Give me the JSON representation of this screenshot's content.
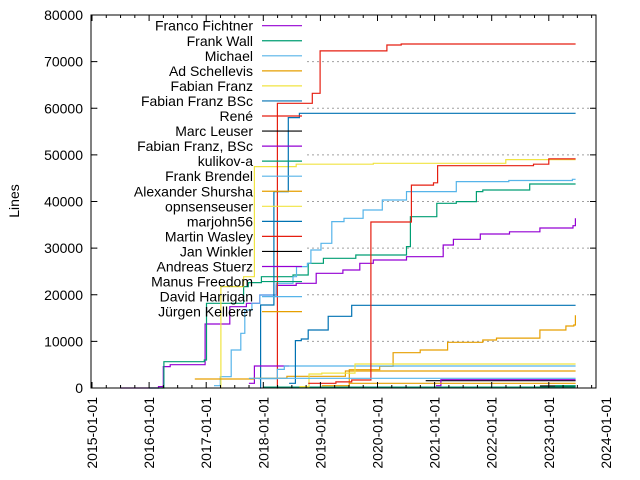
{
  "chart_data": {
    "type": "line",
    "style": "steps",
    "title": "",
    "xlabel": "",
    "ylabel": "Lines",
    "xlim": [
      "2015-01-01",
      "2023-10-31"
    ],
    "ylim": [
      0,
      80000
    ],
    "x_ticks": [
      "2015-01-01",
      "2016-01-01",
      "2017-01-01",
      "2018-01-01",
      "2019-01-01",
      "2020-01-01",
      "2021-01-01",
      "2022-01-01",
      "2023-01-01",
      "2024-01-01"
    ],
    "y_ticks": [
      0,
      10000,
      20000,
      30000,
      40000,
      50000,
      60000,
      70000,
      80000
    ],
    "grid": "horizontal dotted",
    "legend_position": "top-left",
    "series": [
      {
        "name": "Franco Fichtner",
        "color": "#9400d3",
        "points": [
          [
            "2015-07-01",
            0
          ],
          [
            "2016-03-01",
            300
          ],
          [
            "2016-04-01",
            4580
          ],
          [
            "2016-05-15",
            5000
          ],
          [
            "2016-12-25",
            13730
          ],
          [
            "2017-06-01",
            17440
          ],
          [
            "2017-09-15",
            18160
          ],
          [
            "2017-12-10",
            19950
          ],
          [
            "2018-03-25",
            22000
          ],
          [
            "2018-07-30",
            22450
          ],
          [
            "2018-12-05",
            24600
          ],
          [
            "2019-05-25",
            25310
          ],
          [
            "2019-09-10",
            26740
          ],
          [
            "2019-12-05",
            27450
          ],
          [
            "2020-07-05",
            28170
          ],
          [
            "2021-02-25",
            30680
          ],
          [
            "2021-05-01",
            31900
          ],
          [
            "2021-10-20",
            33040
          ],
          [
            "2022-04-25",
            33500
          ],
          [
            "2022-11-05",
            34320
          ],
          [
            "2023-06-05",
            34820
          ],
          [
            "2023-06-20",
            36390
          ]
        ]
      },
      {
        "name": "Frank Wall",
        "color": "#009e73",
        "points": [
          [
            "2016-01-01",
            0
          ],
          [
            "2016-04-05",
            5650
          ],
          [
            "2016-12-20",
            6010
          ],
          [
            "2017-01-03",
            18160
          ],
          [
            "2017-08-28",
            21740
          ],
          [
            "2017-09-27",
            22600
          ],
          [
            "2017-12-20",
            23880
          ],
          [
            "2018-07-10",
            24240
          ],
          [
            "2018-10-15",
            26740
          ],
          [
            "2019-01-20",
            27810
          ],
          [
            "2019-08-15",
            28530
          ],
          [
            "2020-07-05",
            30320
          ],
          [
            "2020-07-30",
            36750
          ],
          [
            "2021-01-15",
            39610
          ],
          [
            "2021-05-20",
            39970
          ],
          [
            "2021-09-25",
            42120
          ],
          [
            "2021-11-05",
            42470
          ],
          [
            "2022-09-01",
            43760
          ],
          [
            "2023-06-21",
            43760
          ]
        ]
      },
      {
        "name": "Michael",
        "color": "#56b4e9",
        "points": [
          [
            "2017-02-20",
            500
          ],
          [
            "2017-04-01",
            2430
          ],
          [
            "2017-06-10",
            8150
          ],
          [
            "2017-08-10",
            11730
          ],
          [
            "2017-09-05",
            16730
          ],
          [
            "2017-10-20",
            18160
          ],
          [
            "2017-12-10",
            19950
          ],
          [
            "2018-03-25",
            22450
          ],
          [
            "2018-07-10",
            23880
          ],
          [
            "2018-08-01",
            26030
          ],
          [
            "2018-10-10",
            26740
          ],
          [
            "2018-11-01",
            29600
          ],
          [
            "2019-01-05",
            31030
          ],
          [
            "2019-03-15",
            35680
          ],
          [
            "2019-06-01",
            36390
          ],
          [
            "2019-10-01",
            38180
          ],
          [
            "2020-02-01",
            40330
          ],
          [
            "2020-07-05",
            42120
          ],
          [
            "2021-05-20",
            44260
          ],
          [
            "2022-04-20",
            44500
          ],
          [
            "2023-06-01",
            44760
          ],
          [
            "2023-06-21",
            44760
          ]
        ]
      },
      {
        "name": "Ad Schellevis",
        "color": "#e69f00",
        "points": [
          [
            "2019-01-10",
            500
          ],
          [
            "2019-07-05",
            3930
          ],
          [
            "2020-01-15",
            4650
          ],
          [
            "2020-04-10",
            7580
          ],
          [
            "2020-10-01",
            8150
          ],
          [
            "2021-03-25",
            9800
          ],
          [
            "2021-11-05",
            10300
          ],
          [
            "2022-02-01",
            10700
          ],
          [
            "2022-11-05",
            12450
          ],
          [
            "2023-04-20",
            13300
          ],
          [
            "2023-06-10",
            13520
          ],
          [
            "2023-06-20",
            15590
          ]
        ]
      },
      {
        "name": "Fabian Franz",
        "color": "#f0e442",
        "points": [
          [
            "2017-04-01",
            0
          ],
          [
            "2017-04-05",
            21740
          ],
          [
            "2017-08-28",
            23880
          ],
          [
            "2017-11-05",
            47480
          ],
          [
            "2018-07-30",
            48000
          ],
          [
            "2019-12-05",
            48190
          ],
          [
            "2022-04-01",
            48980
          ],
          [
            "2023-06-21",
            48980
          ]
        ]
      },
      {
        "name": "Fabian Franz BSc",
        "color": "#0072b2",
        "points": [
          [
            "2017-12-10",
            0
          ],
          [
            "2017-12-15",
            17800
          ],
          [
            "2018-03-10",
            42120
          ],
          [
            "2018-06-10",
            57990
          ],
          [
            "2018-08-20",
            58920
          ],
          [
            "2023-06-21",
            58920
          ]
        ]
      },
      {
        "name": "René",
        "color": "#e51e10",
        "points": [
          [
            "2018-03-28",
            0
          ],
          [
            "2018-04-01",
            61060
          ],
          [
            "2018-11-10",
            63210
          ],
          [
            "2018-12-30",
            72290
          ],
          [
            "2020-03-01",
            73570
          ],
          [
            "2020-06-01",
            73790
          ],
          [
            "2023-06-21",
            73790
          ]
        ]
      },
      {
        "name": "Marc Leuser",
        "color": "#000000",
        "points": [
          [
            "2022-11-05",
            430
          ],
          [
            "2023-06-21",
            430
          ]
        ]
      },
      {
        "name": "Fabian Franz, BSc",
        "color": "#9400d3",
        "points": [
          [
            "2017-10-01",
            1000
          ],
          [
            "2017-11-05",
            4720
          ],
          [
            "2018-06-15",
            4720
          ]
        ]
      },
      {
        "name": "kulikov-a",
        "color": "#009e73",
        "points": [
          [
            "2018-01-01",
            200
          ],
          [
            "2023-06-21",
            200
          ]
        ]
      },
      {
        "name": "Frank Brendel",
        "color": "#56b4e9",
        "points": [
          [
            "2017-12-01",
            2000
          ],
          [
            "2018-04-01",
            4000
          ],
          [
            "2018-05-15",
            4720
          ],
          [
            "2023-06-21",
            4720
          ]
        ]
      },
      {
        "name": "Alexander Shursha",
        "color": "#e69f00",
        "points": [
          [
            "2016-10-20",
            1930
          ],
          [
            "2017-11-01",
            2100
          ],
          [
            "2018-06-01",
            2500
          ],
          [
            "2019-06-10",
            3640
          ],
          [
            "2023-06-21",
            3640
          ]
        ]
      },
      {
        "name": "opnsenseuser",
        "color": "#f0e442",
        "points": [
          [
            "2018-08-20",
            300
          ],
          [
            "2018-10-20",
            3000
          ],
          [
            "2019-01-10",
            3200
          ],
          [
            "2019-08-10",
            5150
          ],
          [
            "2023-06-21",
            5150
          ]
        ]
      },
      {
        "name": "marjohn56",
        "color": "#0072b2",
        "points": [
          [
            "2018-06-15",
            1000
          ],
          [
            "2018-07-25",
            10160
          ],
          [
            "2018-09-01",
            10500
          ],
          [
            "2018-10-15",
            12450
          ],
          [
            "2019-02-20",
            15380
          ],
          [
            "2019-07-20",
            17730
          ],
          [
            "2023-06-21",
            17730
          ]
        ]
      },
      {
        "name": "Martin Wasley",
        "color": "#e51e10",
        "points": [
          [
            "2018-10-15",
            1000
          ],
          [
            "2019-04-10",
            1300
          ],
          [
            "2019-07-20",
            1720
          ],
          [
            "2019-11-20",
            35610
          ],
          [
            "2020-08-05",
            43510
          ],
          [
            "2020-12-25",
            44000
          ],
          [
            "2021-01-20",
            47670
          ],
          [
            "2022-09-25",
            48000
          ],
          [
            "2023-01-01",
            49130
          ],
          [
            "2023-06-21",
            49130
          ]
        ]
      },
      {
        "name": "Jan Winkler",
        "color": "#000000",
        "points": [
          [
            "2020-11-05",
            1570
          ],
          [
            "2023-06-21",
            1570
          ]
        ]
      },
      {
        "name": "Andreas Stuerz",
        "color": "#9400d3",
        "points": [
          [
            "2021-01-10",
            500
          ],
          [
            "2021-02-10",
            1790
          ],
          [
            "2023-06-21",
            1790
          ]
        ]
      },
      {
        "name": "Manus Freedom",
        "color": "#009e73",
        "points": [
          [
            "2023-02-10",
            500
          ],
          [
            "2023-06-21",
            500
          ]
        ]
      },
      {
        "name": "David Harrigan",
        "color": "#56b4e9",
        "points": [
          [
            "2017-10-01",
            2070
          ],
          [
            "2023-06-21",
            2070
          ]
        ]
      },
      {
        "name": "Jürgen Kellerer",
        "color": "#e69f00",
        "points": [
          [
            "2019-07-01",
            1000
          ],
          [
            "2023-06-21",
            1000
          ]
        ]
      }
    ]
  }
}
